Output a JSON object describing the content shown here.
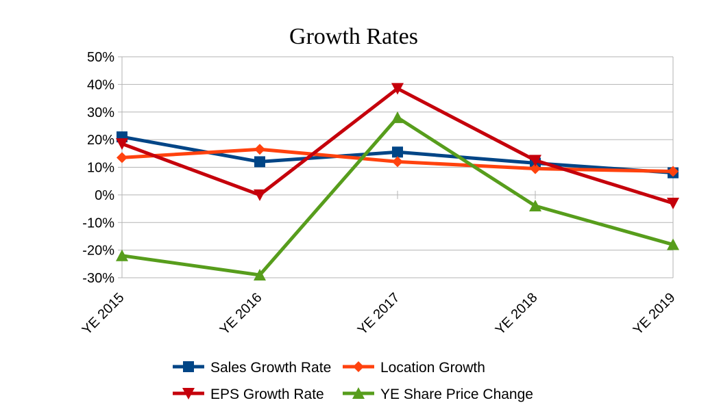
{
  "chart_data": {
    "type": "line",
    "title": "Growth Rates",
    "xlabel": "",
    "ylabel": "",
    "categories": [
      "YE 2015",
      "YE 2016",
      "YE 2017",
      "YE 2018",
      "YE 2019"
    ],
    "ylim": [
      -0.3,
      0.5
    ],
    "yticks": [
      0.5,
      0.4,
      0.3,
      0.2,
      0.1,
      0.0,
      -0.1,
      -0.2,
      -0.3
    ],
    "ytick_labels": [
      "50%",
      "40%",
      "30%",
      "20%",
      "10%",
      "0%",
      "-10%",
      "-20%",
      "-30%"
    ],
    "grid": true,
    "legend_position": "bottom",
    "series": [
      {
        "name": "Sales Growth Rate",
        "color": "#004586",
        "marker": "square",
        "values": [
          0.21,
          0.12,
          0.155,
          0.115,
          0.08
        ]
      },
      {
        "name": "Location Growth",
        "color": "#ff420e",
        "marker": "diamond",
        "values": [
          0.135,
          0.165,
          0.12,
          0.095,
          0.085
        ]
      },
      {
        "name": "EPS Growth Rate",
        "color": "#c5000b",
        "marker": "triangle-down",
        "values": [
          0.185,
          0.0,
          0.385,
          0.125,
          -0.03
        ]
      },
      {
        "name": "YE Share Price Change",
        "color": "#579d1c",
        "marker": "triangle-up",
        "values": [
          -0.22,
          -0.29,
          0.28,
          -0.04,
          -0.18
        ]
      }
    ]
  }
}
